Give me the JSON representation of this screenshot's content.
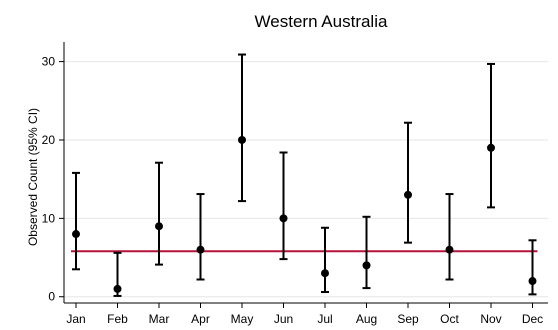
{
  "chart_data": {
    "type": "scatter",
    "title": "Western Australia",
    "xlabel": "",
    "ylabel": "Observed Count (95% CI)",
    "categories": [
      "Jan",
      "Feb",
      "Mar",
      "Apr",
      "May",
      "Jun",
      "Jul",
      "Aug",
      "Sep",
      "Oct",
      "Nov",
      "Dec"
    ],
    "values": [
      8,
      1,
      9,
      6,
      20,
      10,
      3,
      4,
      13,
      6,
      19,
      2
    ],
    "ci_lower": [
      3.5,
      0.1,
      4.1,
      2.2,
      12.2,
      4.8,
      0.6,
      1.1,
      6.9,
      2.2,
      11.4,
      0.3
    ],
    "ci_upper": [
      15.8,
      5.6,
      17.1,
      13.1,
      30.9,
      18.4,
      8.8,
      10.2,
      22.2,
      13.1,
      29.7,
      7.2
    ],
    "reference_line": 5.8,
    "yticks": [
      0,
      10,
      20,
      30
    ],
    "ylim": [
      -0.8,
      32.5
    ],
    "grid": true,
    "colors": {
      "points": "#000000",
      "reference_line": "#b5123c",
      "grid": "#e6e6e6"
    }
  }
}
